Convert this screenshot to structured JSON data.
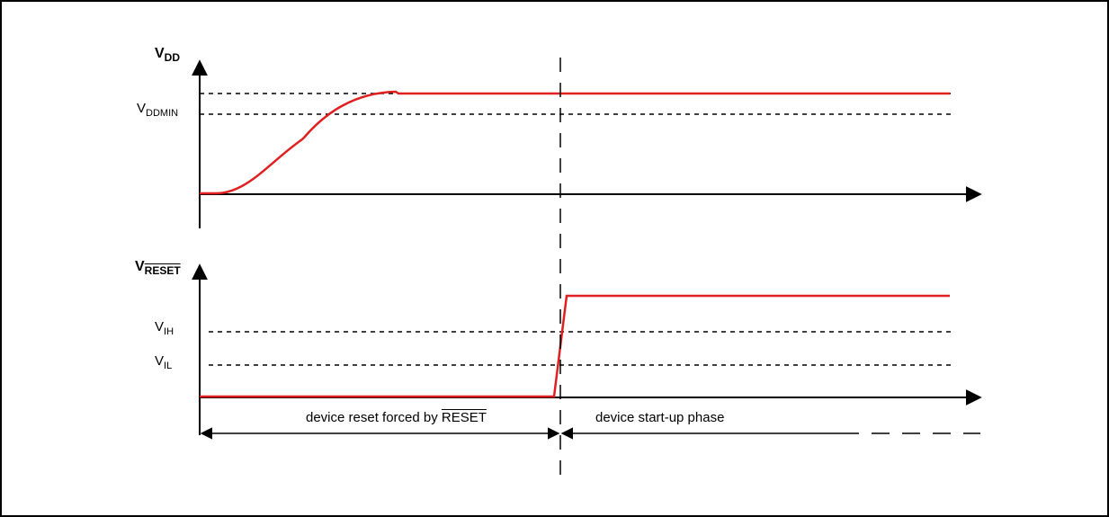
{
  "labels": {
    "vdd_main": "V",
    "vdd_sub": "DD",
    "vddmin_main": "V",
    "vddmin_sub": "DDMIN",
    "vreset_main": "V",
    "vreset_sub": "RESET",
    "vih_main": "V",
    "vih_sub": "IH",
    "vil_main": "V",
    "vil_sub": "IL",
    "phase_reset_text": "device reset forced by ",
    "phase_reset_signal": "RESET",
    "phase_startup": "device start-up phase"
  },
  "colors": {
    "signal": "#e02020",
    "lines": "#000000"
  }
}
